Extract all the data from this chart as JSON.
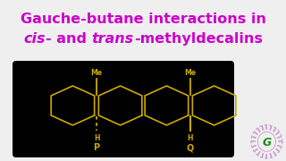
{
  "title_line1": "Gauche-butane interactions in",
  "title_line2_italic1": "cis",
  "title_line2_mid": "- and ",
  "title_line2_italic2": "trans",
  "title_line2_end": "-methyldecalins",
  "title_color": "#CC00CC",
  "title_fontsize": 11.5,
  "bg_color": "#EFEFEF",
  "box_bg": "#000000",
  "molecule_color": "#CCAA00",
  "label_P": "P",
  "label_Q": "Q",
  "label_Me": "Me",
  "label_H": "H",
  "logo_color1": "#CC88CC",
  "logo_color2": "#228822"
}
